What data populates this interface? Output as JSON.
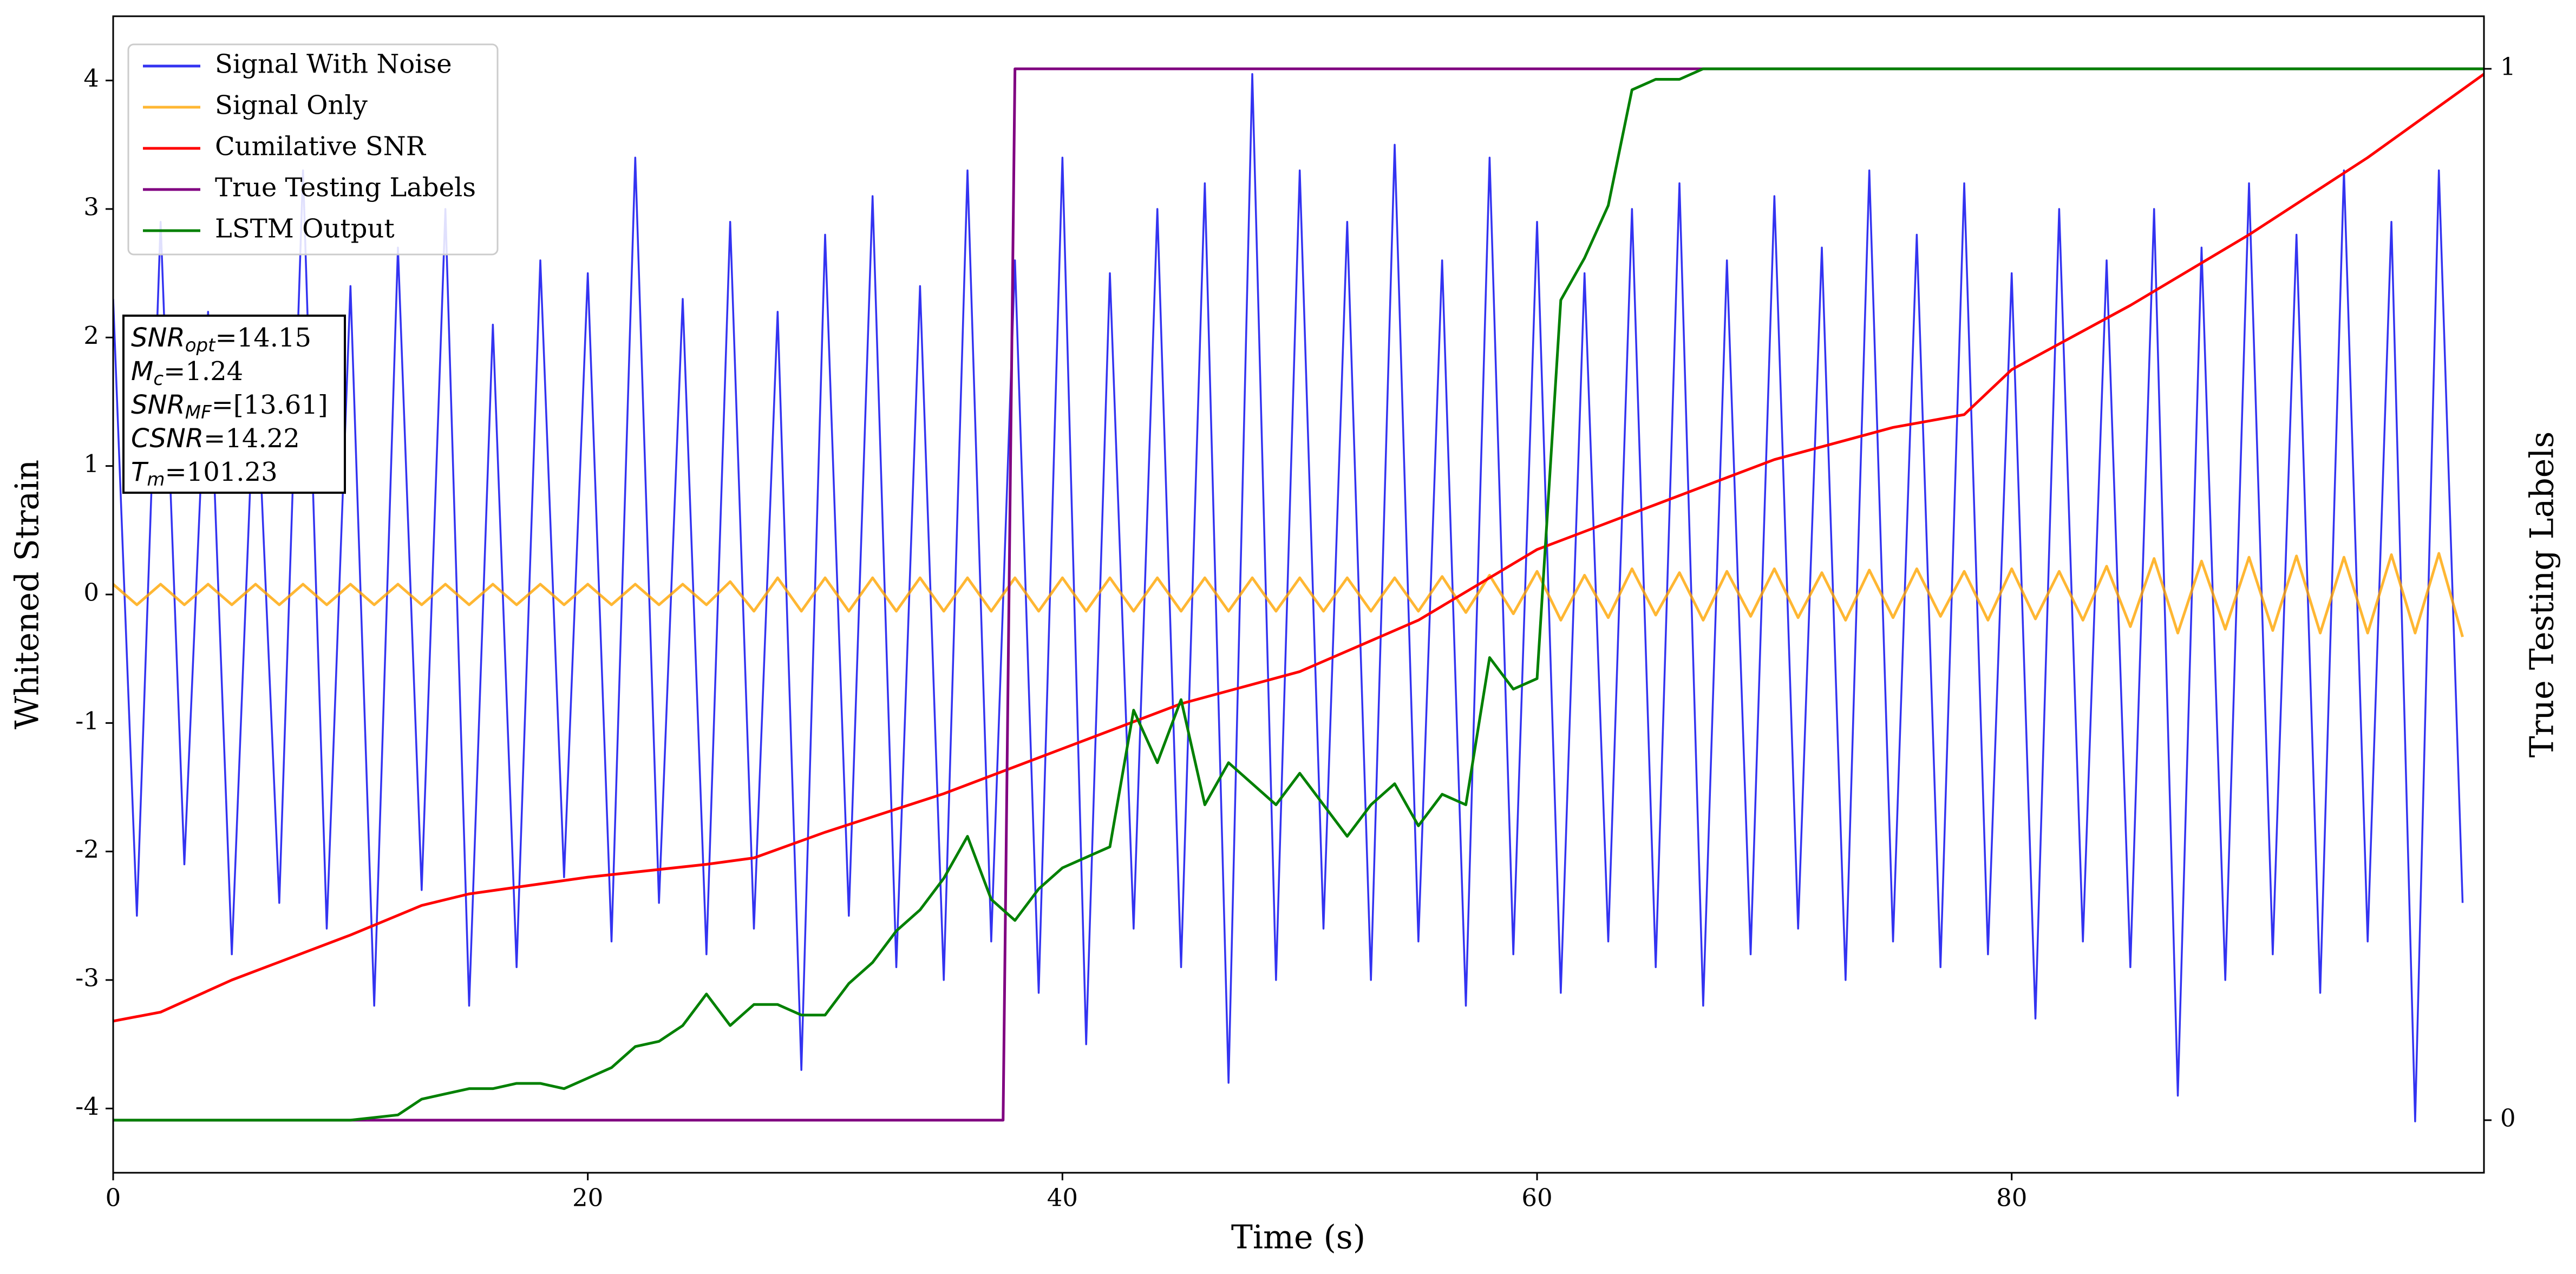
{
  "chart_data": {
    "type": "line",
    "xlabel": "Time (s)",
    "ylabel": "Whitened Strain",
    "y2label": "True Testing Labels",
    "xlim": [
      0,
      99.9
    ],
    "xticks": [
      0,
      20,
      40,
      60,
      80
    ],
    "ylim": [
      -4.5,
      4.5
    ],
    "yticks": [
      -4,
      -3,
      -2,
      -1,
      0,
      1,
      2,
      3,
      4
    ],
    "y2lim": [
      -0.05,
      1.05
    ],
    "y2ticks": [
      0,
      1
    ],
    "legend": "upper left",
    "x": [
      0,
      1,
      2,
      3,
      4,
      5,
      6,
      7,
      8,
      9,
      10,
      11,
      12,
      13,
      14,
      15,
      16,
      17,
      18,
      19,
      20,
      21,
      22,
      23,
      24,
      25,
      26,
      27,
      28,
      29,
      30,
      31,
      32,
      33,
      34,
      35,
      36,
      37,
      38,
      39,
      40,
      41,
      42,
      43,
      44,
      45,
      46,
      47,
      48,
      49,
      50,
      51,
      52,
      53,
      54,
      55,
      56,
      57,
      58,
      59,
      60,
      61,
      62,
      63,
      64,
      65,
      66,
      67,
      68,
      69,
      70,
      71,
      72,
      73,
      74,
      75,
      76,
      77,
      78,
      79,
      80,
      81,
      82,
      83,
      84,
      85,
      86,
      87,
      88,
      89,
      90,
      91,
      92,
      93,
      94,
      95,
      96,
      97,
      98,
      99
    ],
    "series": [
      {
        "name": "Signal With Noise",
        "color": "#0000ee",
        "values": [
          2.3,
          -2.5,
          2.9,
          -2.1,
          2.2,
          -2.8,
          1.9,
          -2.4,
          3.3,
          -2.6,
          2.4,
          -3.2,
          2.7,
          -2.3,
          3.0,
          -3.2,
          2.1,
          -2.9,
          2.6,
          -2.2,
          2.5,
          -2.7,
          3.4,
          -2.4,
          2.3,
          -2.8,
          2.9,
          -2.6,
          2.2,
          -3.7,
          2.8,
          -2.5,
          3.1,
          -2.9,
          2.4,
          -3.0,
          3.3,
          -2.7,
          2.6,
          -3.1,
          3.4,
          -3.5,
          2.5,
          -2.6,
          3.0,
          -2.9,
          3.2,
          -3.8,
          4.05,
          -3.0,
          3.3,
          -2.6,
          2.9,
          -3.0,
          3.5,
          -2.7,
          2.6,
          -3.2,
          3.4,
          -2.8,
          2.9,
          -3.1,
          2.5,
          -2.7,
          3.0,
          -2.9,
          3.2,
          -3.2,
          2.6,
          -2.8,
          3.1,
          -2.6,
          2.7,
          -3.0,
          3.3,
          -2.7,
          2.8,
          -2.9,
          3.2,
          -2.8,
          2.5,
          -3.3,
          3.0,
          -2.7,
          2.6,
          -2.9,
          3.0,
          -3.9,
          2.7,
          -3.0,
          3.2,
          -2.8,
          2.8,
          -3.1,
          3.3,
          -2.7,
          2.9,
          -4.1,
          3.3,
          -2.4
        ]
      },
      {
        "name": "Signal Only",
        "color": "orange",
        "values": [
          0.08,
          -0.08,
          0.08,
          -0.08,
          0.08,
          -0.08,
          0.08,
          -0.08,
          0.08,
          -0.08,
          0.08,
          -0.08,
          0.08,
          -0.08,
          0.08,
          -0.08,
          0.08,
          -0.08,
          0.08,
          -0.08,
          0.08,
          -0.08,
          0.08,
          -0.08,
          0.08,
          -0.08,
          0.1,
          -0.13,
          0.13,
          -0.13,
          0.13,
          -0.13,
          0.13,
          -0.13,
          0.13,
          -0.13,
          0.13,
          -0.13,
          0.13,
          -0.13,
          0.13,
          -0.13,
          0.13,
          -0.13,
          0.13,
          -0.13,
          0.13,
          -0.13,
          0.13,
          -0.13,
          0.13,
          -0.13,
          0.13,
          -0.13,
          0.13,
          -0.13,
          0.14,
          -0.14,
          0.15,
          -0.15,
          0.18,
          -0.2,
          0.15,
          -0.18,
          0.2,
          -0.16,
          0.17,
          -0.2,
          0.18,
          -0.17,
          0.2,
          -0.18,
          0.17,
          -0.2,
          0.19,
          -0.18,
          0.2,
          -0.17,
          0.18,
          -0.2,
          0.2,
          -0.19,
          0.18,
          -0.2,
          0.22,
          -0.25,
          0.28,
          -0.3,
          0.26,
          -0.27,
          0.29,
          -0.28,
          0.3,
          -0.3,
          0.29,
          -0.3,
          0.31,
          -0.3,
          0.32,
          -0.33
        ]
      },
      {
        "name": "Cumilative SNR",
        "color": "red",
        "x": [
          0,
          2,
          5,
          10,
          13,
          15,
          20,
          25,
          27,
          30,
          35,
          40,
          45,
          50,
          55,
          60,
          65,
          70,
          75,
          78,
          80,
          85,
          90,
          95,
          99.9
        ],
        "values": [
          -3.32,
          -3.25,
          -3.0,
          -2.65,
          -2.42,
          -2.33,
          -2.2,
          -2.1,
          -2.05,
          -1.85,
          -1.55,
          -1.2,
          -0.85,
          -0.6,
          -0.2,
          0.35,
          0.7,
          1.05,
          1.3,
          1.4,
          1.75,
          2.25,
          2.8,
          3.4,
          4.05
        ]
      },
      {
        "name": "True Testing Labels",
        "color": "purple",
        "axis": "y2",
        "x": [
          0,
          37.5,
          38,
          99.9
        ],
        "values": [
          0,
          0,
          1,
          1
        ]
      },
      {
        "name": "LSTM Output",
        "color": "green",
        "axis": "y2",
        "x": [
          0,
          10,
          12,
          13,
          14,
          15,
          16,
          17,
          18,
          19,
          20,
          21,
          22,
          23,
          24,
          25,
          26,
          27,
          28,
          29,
          30,
          31,
          32,
          33,
          34,
          35,
          36,
          37,
          38,
          39,
          40,
          41,
          42,
          43,
          44,
          45,
          46,
          47,
          48,
          49,
          50,
          51,
          52,
          53,
          54,
          55,
          56,
          57,
          58,
          59,
          60,
          61,
          62,
          63,
          64,
          65,
          66,
          67,
          68,
          70,
          99.9
        ],
        "values": [
          0,
          0,
          0.005,
          0.02,
          0.025,
          0.03,
          0.03,
          0.035,
          0.035,
          0.03,
          0.04,
          0.05,
          0.07,
          0.075,
          0.09,
          0.12,
          0.09,
          0.11,
          0.11,
          0.1,
          0.1,
          0.13,
          0.15,
          0.18,
          0.2,
          0.23,
          0.27,
          0.21,
          0.19,
          0.22,
          0.24,
          0.25,
          0.26,
          0.39,
          0.34,
          0.4,
          0.3,
          0.34,
          0.32,
          0.3,
          0.33,
          0.3,
          0.27,
          0.3,
          0.32,
          0.28,
          0.31,
          0.3,
          0.44,
          0.41,
          0.42,
          0.78,
          0.82,
          0.87,
          0.98,
          0.99,
          0.99,
          1.0,
          1.0,
          1.0,
          1.0
        ]
      }
    ],
    "annotations": [
      {
        "text": "SNR",
        "sub": "opt",
        "value": "=14.15"
      },
      {
        "text": "M",
        "sub": "c",
        "value": "=1.24"
      },
      {
        "text": "SNR",
        "sub": "MF",
        "value": "=[13.61]"
      },
      {
        "text": "CSNR",
        "value": "=14.22"
      },
      {
        "text": "T",
        "sub": "m",
        "value": "=101.23"
      }
    ]
  }
}
